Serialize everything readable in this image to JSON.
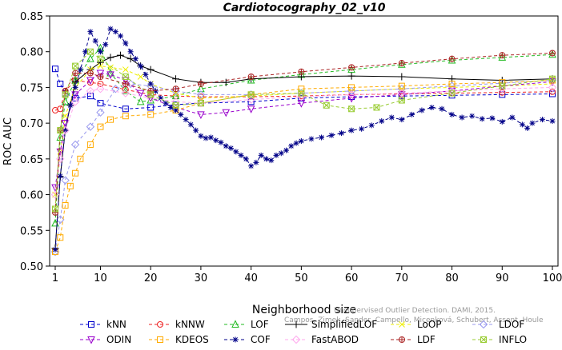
{
  "chart_data": {
    "type": "line",
    "title": "Cardiotocography_02_v10",
    "xlabel": "Neighborhood size",
    "ylabel": "ROC AUC",
    "xlim": [
      1,
      100
    ],
    "ylim": [
      0.5,
      0.85
    ],
    "xticks": [
      1,
      10,
      20,
      30,
      40,
      50,
      60,
      70,
      80,
      90,
      100
    ],
    "yticks": [
      0.5,
      0.55,
      0.6,
      0.65,
      0.7,
      0.75,
      0.8,
      0.85
    ],
    "grid": false,
    "legend_position": "bottom",
    "watermark": {
      "line1": "Unsupervised Outlier Detection. DAMI, 2015.",
      "line2": "Campos, Zimek, Sander, Campello, Micenková, Schubert, Assent, Houle"
    },
    "series": [
      {
        "name": "kNN",
        "color": "#0000cc",
        "marker": "square",
        "dash": "4,3",
        "points": [
          [
            1,
            0.776
          ],
          [
            2,
            0.755
          ],
          [
            3,
            0.742
          ],
          [
            5,
            0.735
          ],
          [
            8,
            0.738
          ],
          [
            10,
            0.728
          ],
          [
            15,
            0.72
          ],
          [
            20,
            0.722
          ],
          [
            25,
            0.726
          ],
          [
            30,
            0.728
          ],
          [
            40,
            0.73
          ],
          [
            50,
            0.735
          ],
          [
            60,
            0.737
          ],
          [
            70,
            0.738
          ],
          [
            80,
            0.739
          ],
          [
            90,
            0.74
          ],
          [
            100,
            0.741
          ]
        ]
      },
      {
        "name": "kNNW",
        "color": "#ee2222",
        "marker": "circle",
        "dash": "4,3",
        "points": [
          [
            1,
            0.718
          ],
          [
            2,
            0.72
          ],
          [
            3,
            0.745
          ],
          [
            5,
            0.76
          ],
          [
            8,
            0.757
          ],
          [
            10,
            0.755
          ],
          [
            15,
            0.747
          ],
          [
            20,
            0.74
          ],
          [
            25,
            0.738
          ],
          [
            30,
            0.737
          ],
          [
            40,
            0.737
          ],
          [
            50,
            0.738
          ],
          [
            60,
            0.74
          ],
          [
            70,
            0.741
          ],
          [
            80,
            0.742
          ],
          [
            90,
            0.743
          ],
          [
            100,
            0.744
          ]
        ]
      },
      {
        "name": "LOF",
        "color": "#22bb22",
        "marker": "triangle",
        "dash": "4,3",
        "points": [
          [
            1,
            0.56
          ],
          [
            2,
            0.68
          ],
          [
            3,
            0.73
          ],
          [
            5,
            0.76
          ],
          [
            8,
            0.79
          ],
          [
            10,
            0.805
          ],
          [
            12,
            0.77
          ],
          [
            15,
            0.745
          ],
          [
            18,
            0.73
          ],
          [
            20,
            0.732
          ],
          [
            25,
            0.738
          ],
          [
            30,
            0.748
          ],
          [
            40,
            0.76
          ],
          [
            50,
            0.768
          ],
          [
            60,
            0.775
          ],
          [
            70,
            0.782
          ],
          [
            80,
            0.788
          ],
          [
            90,
            0.792
          ],
          [
            100,
            0.796
          ]
        ]
      },
      {
        "name": "SimplifiedLOF",
        "color": "#000000",
        "marker": "plus",
        "dash": "",
        "points": [
          [
            1,
            0.525
          ],
          [
            2,
            0.625
          ],
          [
            3,
            0.69
          ],
          [
            4,
            0.725
          ],
          [
            5,
            0.758
          ],
          [
            8,
            0.775
          ],
          [
            10,
            0.785
          ],
          [
            12,
            0.792
          ],
          [
            14,
            0.795
          ],
          [
            16,
            0.79
          ],
          [
            18,
            0.78
          ],
          [
            20,
            0.775
          ],
          [
            25,
            0.762
          ],
          [
            30,
            0.757
          ],
          [
            35,
            0.757
          ],
          [
            40,
            0.762
          ],
          [
            50,
            0.765
          ],
          [
            60,
            0.766
          ],
          [
            70,
            0.765
          ],
          [
            80,
            0.762
          ],
          [
            90,
            0.76
          ],
          [
            100,
            0.762
          ]
        ]
      },
      {
        "name": "LoOP",
        "color": "#eeee00",
        "marker": "x",
        "dash": "4,3",
        "points": [
          [
            1,
            0.6
          ],
          [
            2,
            0.66
          ],
          [
            3,
            0.71
          ],
          [
            5,
            0.75
          ],
          [
            8,
            0.775
          ],
          [
            10,
            0.78
          ],
          [
            12,
            0.778
          ],
          [
            15,
            0.775
          ],
          [
            18,
            0.765
          ],
          [
            20,
            0.755
          ],
          [
            25,
            0.742
          ],
          [
            30,
            0.735
          ],
          [
            40,
            0.738
          ],
          [
            50,
            0.742
          ],
          [
            60,
            0.745
          ],
          [
            70,
            0.748
          ],
          [
            80,
            0.75
          ],
          [
            90,
            0.752
          ],
          [
            100,
            0.755
          ]
        ]
      },
      {
        "name": "LDOF",
        "color": "#9999ee",
        "marker": "diamond",
        "dash": "4,3",
        "points": [
          [
            1,
            0.52
          ],
          [
            2,
            0.565
          ],
          [
            3,
            0.62
          ],
          [
            5,
            0.67
          ],
          [
            8,
            0.695
          ],
          [
            10,
            0.715
          ],
          [
            13,
            0.748
          ],
          [
            16,
            0.755
          ],
          [
            20,
            0.752
          ],
          [
            25,
            0.745
          ],
          [
            30,
            0.74
          ],
          [
            40,
            0.74
          ],
          [
            50,
            0.742
          ],
          [
            60,
            0.745
          ],
          [
            70,
            0.748
          ],
          [
            80,
            0.752
          ],
          [
            90,
            0.756
          ],
          [
            100,
            0.76
          ]
        ]
      },
      {
        "name": "ODIN",
        "color": "#9900cc",
        "marker": "triangle-down",
        "dash": "4,3",
        "points": [
          [
            1,
            0.61
          ],
          [
            2,
            0.66
          ],
          [
            3,
            0.7
          ],
          [
            5,
            0.74
          ],
          [
            8,
            0.76
          ],
          [
            10,
            0.77
          ],
          [
            12,
            0.768
          ],
          [
            15,
            0.76
          ],
          [
            18,
            0.742
          ],
          [
            20,
            0.735
          ],
          [
            25,
            0.722
          ],
          [
            30,
            0.712
          ],
          [
            35,
            0.715
          ],
          [
            40,
            0.72
          ],
          [
            50,
            0.728
          ],
          [
            60,
            0.735
          ],
          [
            70,
            0.74
          ],
          [
            80,
            0.745
          ],
          [
            90,
            0.752
          ],
          [
            100,
            0.758
          ]
        ]
      },
      {
        "name": "KDEOS",
        "color": "#ffaa00",
        "marker": "square",
        "dash": "4,3",
        "points": [
          [
            1,
            0.52
          ],
          [
            2,
            0.54
          ],
          [
            3,
            0.585
          ],
          [
            4,
            0.612
          ],
          [
            5,
            0.63
          ],
          [
            6,
            0.65
          ],
          [
            8,
            0.67
          ],
          [
            10,
            0.695
          ],
          [
            12,
            0.705
          ],
          [
            15,
            0.71
          ],
          [
            20,
            0.712
          ],
          [
            25,
            0.718
          ],
          [
            30,
            0.728
          ],
          [
            40,
            0.74
          ],
          [
            50,
            0.748
          ],
          [
            60,
            0.75
          ],
          [
            70,
            0.752
          ],
          [
            80,
            0.755
          ],
          [
            90,
            0.757
          ],
          [
            100,
            0.76
          ]
        ]
      },
      {
        "name": "COF",
        "color": "#000088",
        "marker": "star",
        "dash": "4,3",
        "points": [
          [
            1,
            0.523
          ],
          [
            2,
            0.626
          ],
          [
            3,
            0.69
          ],
          [
            4,
            0.725
          ],
          [
            5,
            0.75
          ],
          [
            6,
            0.775
          ],
          [
            7,
            0.8
          ],
          [
            8,
            0.828
          ],
          [
            9,
            0.815
          ],
          [
            10,
            0.8
          ],
          [
            11,
            0.81
          ],
          [
            12,
            0.832
          ],
          [
            13,
            0.828
          ],
          [
            14,
            0.822
          ],
          [
            15,
            0.812
          ],
          [
            16,
            0.8
          ],
          [
            17,
            0.79
          ],
          [
            18,
            0.78
          ],
          [
            19,
            0.768
          ],
          [
            20,
            0.755
          ],
          [
            21,
            0.745
          ],
          [
            22,
            0.735
          ],
          [
            23,
            0.728
          ],
          [
            24,
            0.722
          ],
          [
            25,
            0.718
          ],
          [
            26,
            0.712
          ],
          [
            27,
            0.705
          ],
          [
            28,
            0.698
          ],
          [
            29,
            0.69
          ],
          [
            30,
            0.682
          ],
          [
            31,
            0.679
          ],
          [
            32,
            0.68
          ],
          [
            33,
            0.676
          ],
          [
            34,
            0.673
          ],
          [
            35,
            0.668
          ],
          [
            36,
            0.665
          ],
          [
            37,
            0.66
          ],
          [
            38,
            0.655
          ],
          [
            39,
            0.65
          ],
          [
            40,
            0.64
          ],
          [
            41,
            0.645
          ],
          [
            42,
            0.655
          ],
          [
            43,
            0.65
          ],
          [
            44,
            0.648
          ],
          [
            45,
            0.655
          ],
          [
            46,
            0.658
          ],
          [
            47,
            0.662
          ],
          [
            48,
            0.668
          ],
          [
            49,
            0.672
          ],
          [
            50,
            0.675
          ],
          [
            52,
            0.678
          ],
          [
            54,
            0.68
          ],
          [
            56,
            0.683
          ],
          [
            58,
            0.686
          ],
          [
            60,
            0.69
          ],
          [
            62,
            0.692
          ],
          [
            64,
            0.697
          ],
          [
            66,
            0.703
          ],
          [
            68,
            0.708
          ],
          [
            70,
            0.705
          ],
          [
            72,
            0.712
          ],
          [
            74,
            0.718
          ],
          [
            76,
            0.722
          ],
          [
            78,
            0.72
          ],
          [
            80,
            0.712
          ],
          [
            82,
            0.708
          ],
          [
            84,
            0.71
          ],
          [
            86,
            0.706
          ],
          [
            88,
            0.707
          ],
          [
            90,
            0.702
          ],
          [
            92,
            0.708
          ],
          [
            94,
            0.698
          ],
          [
            95,
            0.693
          ],
          [
            96,
            0.7
          ],
          [
            98,
            0.705
          ],
          [
            100,
            0.703
          ]
        ]
      },
      {
        "name": "FastABOD",
        "color": "#ffaaee",
        "marker": "diamond",
        "dash": "4,3",
        "points": [
          [
            1,
            0.6
          ],
          [
            2,
            0.65
          ],
          [
            3,
            0.69
          ],
          [
            5,
            0.73
          ],
          [
            8,
            0.745
          ],
          [
            10,
            0.748
          ],
          [
            15,
            0.742
          ],
          [
            20,
            0.735
          ],
          [
            25,
            0.73
          ],
          [
            30,
            0.728
          ],
          [
            40,
            0.733
          ],
          [
            50,
            0.737
          ],
          [
            60,
            0.74
          ],
          [
            70,
            0.742
          ],
          [
            80,
            0.745
          ],
          [
            90,
            0.748
          ],
          [
            100,
            0.75
          ]
        ]
      },
      {
        "name": "LDF",
        "color": "#aa2222",
        "marker": "circle-plus",
        "dash": "4,3",
        "points": [
          [
            1,
            0.575
          ],
          [
            2,
            0.69
          ],
          [
            3,
            0.745
          ],
          [
            5,
            0.77
          ],
          [
            8,
            0.77
          ],
          [
            10,
            0.765
          ],
          [
            15,
            0.755
          ],
          [
            20,
            0.745
          ],
          [
            25,
            0.748
          ],
          [
            30,
            0.755
          ],
          [
            40,
            0.765
          ],
          [
            50,
            0.772
          ],
          [
            60,
            0.778
          ],
          [
            70,
            0.784
          ],
          [
            80,
            0.79
          ],
          [
            90,
            0.795
          ],
          [
            100,
            0.798
          ]
        ]
      },
      {
        "name": "INFLO",
        "color": "#99cc33",
        "marker": "star-box",
        "dash": "4,3",
        "points": [
          [
            1,
            0.58
          ],
          [
            2,
            0.69
          ],
          [
            3,
            0.74
          ],
          [
            5,
            0.78
          ],
          [
            8,
            0.8
          ],
          [
            10,
            0.79
          ],
          [
            15,
            0.765
          ],
          [
            20,
            0.74
          ],
          [
            25,
            0.725
          ],
          [
            30,
            0.728
          ],
          [
            40,
            0.74
          ],
          [
            50,
            0.742
          ],
          [
            55,
            0.725
          ],
          [
            60,
            0.72
          ],
          [
            65,
            0.722
          ],
          [
            70,
            0.732
          ],
          [
            80,
            0.742
          ],
          [
            90,
            0.752
          ],
          [
            100,
            0.762
          ]
        ]
      }
    ]
  }
}
